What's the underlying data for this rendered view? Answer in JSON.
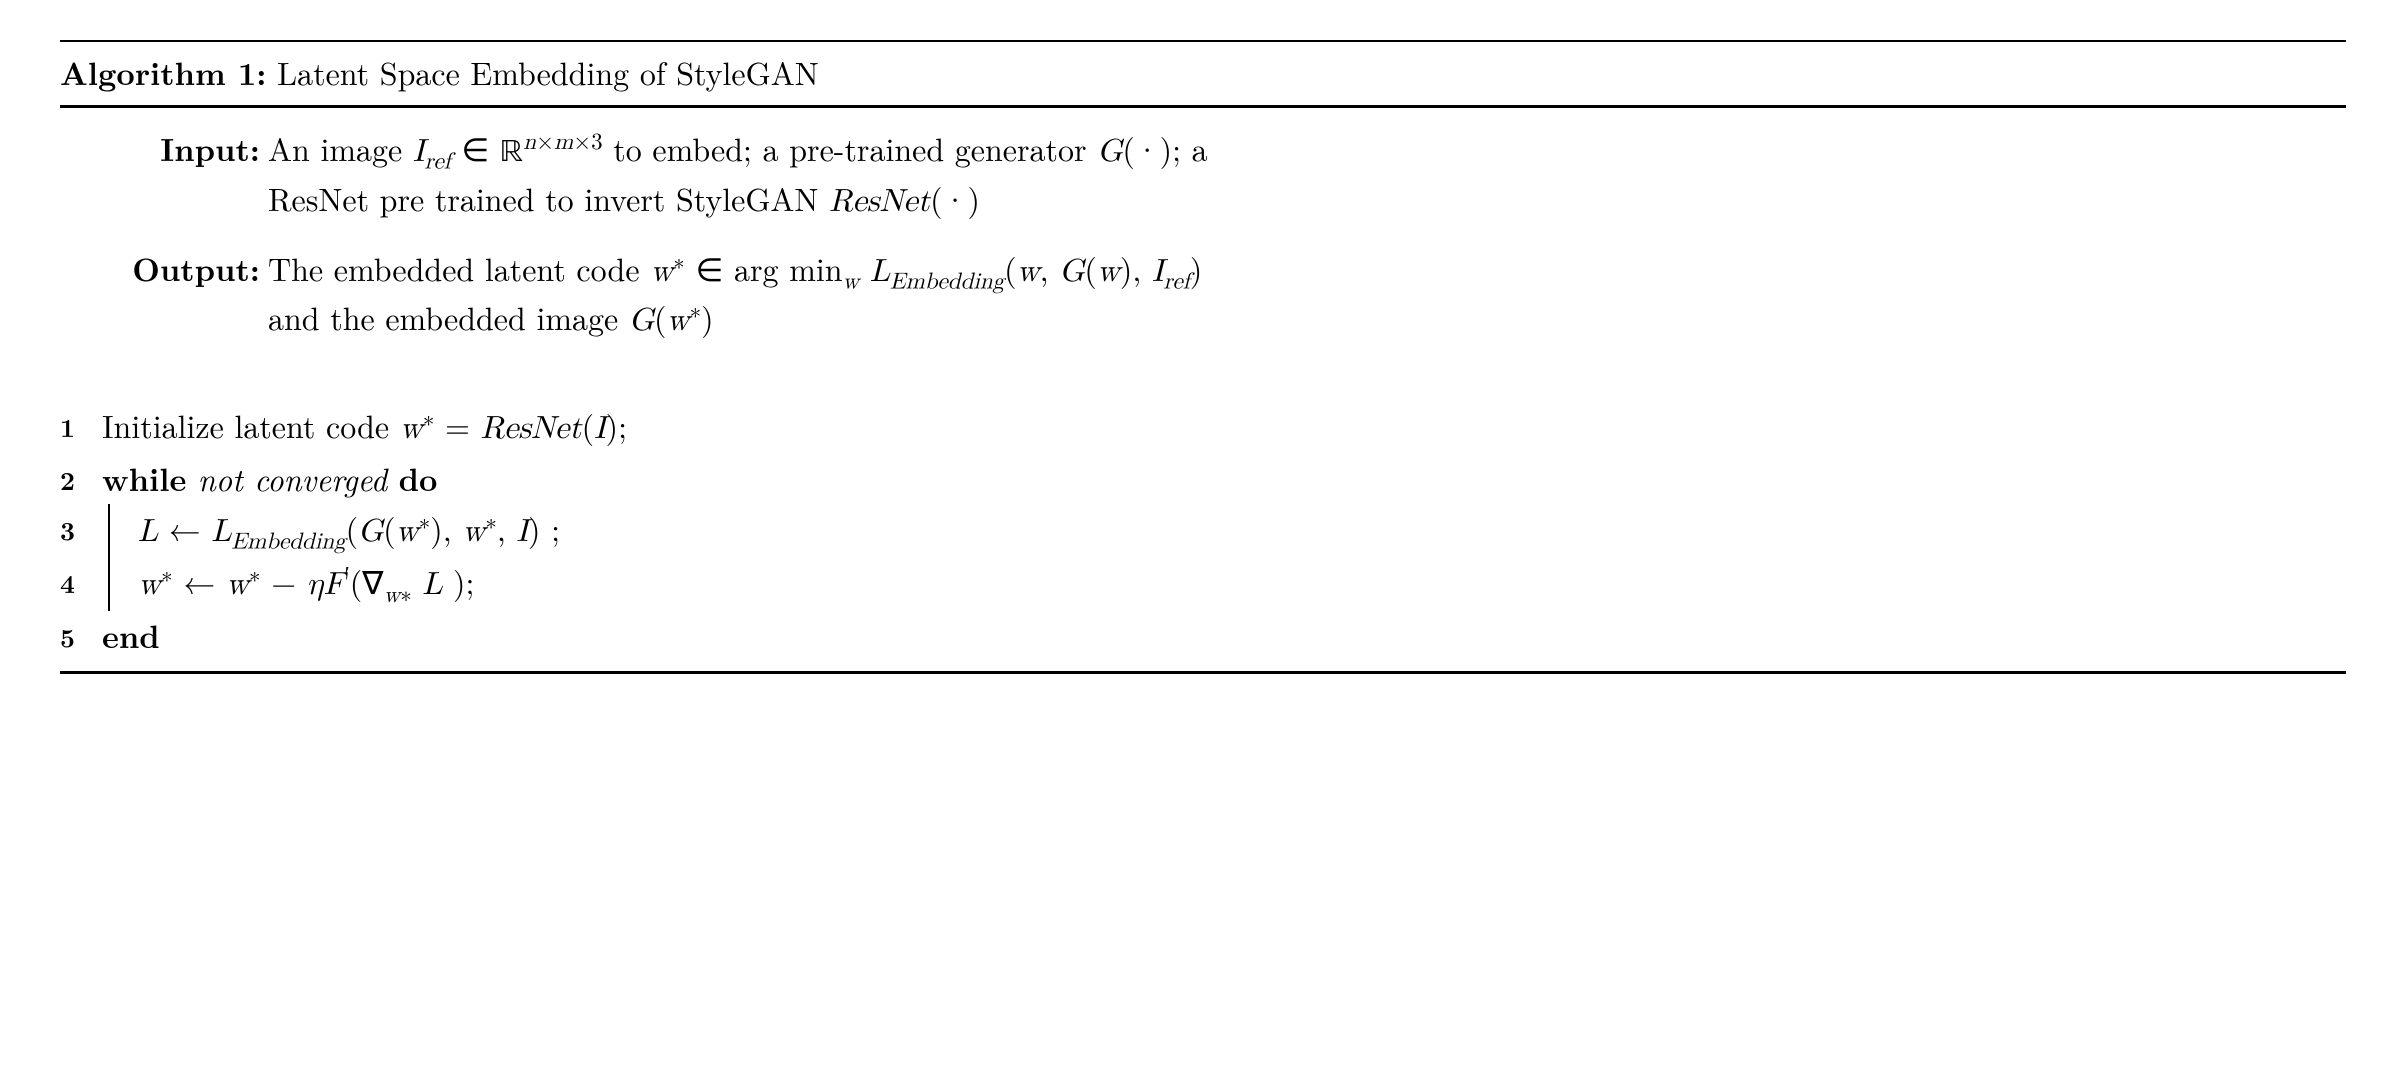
{
  "title": {
    "label": "Algorithm 1:",
    "text": "Latent Space Embedding of StyleGAN"
  },
  "input": {
    "label": "Input:",
    "line1_pre": "An image ",
    "line1_math_Iref": "I",
    "line1_sub_ref": "ref",
    "line1_in": " ∈ ",
    "line1_R": "ℝ",
    "line1_exp_n": "n",
    "line1_exp_times1": "×",
    "line1_exp_m": "m",
    "line1_exp_times2": "×",
    "line1_exp_3": "3",
    "line1_post": " to embed; a pre-trained generator ",
    "line1_G": "G",
    "line1_Gargs": "(·); a",
    "line2_pre": "ResNet pre trained to invert StyleGAN ",
    "line2_ResNet": "ResNet",
    "line2_args": "(·)"
  },
  "output": {
    "label": "Output:",
    "line1_pre": "The embedded latent code ",
    "line1_w": "w",
    "line1_star": "∗",
    "line1_in": " ∈ arg min",
    "line1_sub_w": "w",
    "line1_sp": " ",
    "line1_L": "L",
    "line1_Lsub": "Embedding",
    "line1_args_open": "(",
    "line1_warg": "w",
    "line1_comma1": ", ",
    "line1_G": "G",
    "line1_Gopen": "(",
    "line1_Gw": "w",
    "line1_Gclose": ")",
    "line1_comma2": ", ",
    "line1_I": "I",
    "line1_Iref": "ref",
    "line1_close": ")",
    "line2_pre": "and the embedded image ",
    "line2_G": "G",
    "line2_open": "(",
    "line2_w": "w",
    "line2_star": "∗",
    "line2_close": ")"
  },
  "steps": {
    "s1": {
      "num": "1",
      "pre": "Initialize latent code ",
      "w": "w",
      "star": "∗",
      "eq": " = ",
      "ResNet": "ResNet",
      "open": "(",
      "I": "I",
      "close": ");"
    },
    "s2": {
      "num": "2",
      "while": "while",
      "cond": " not converged ",
      "do": "do"
    },
    "s3": {
      "num": "3",
      "L": "L",
      "arrow": " ← ",
      "Le": "L",
      "Lesub": "Embedding",
      "open": "(",
      "G": "G",
      "Gopen": "(",
      "w1": "w",
      "star1": "∗",
      "Gclose": ")",
      "c1": ", ",
      "w2": "w",
      "star2": "∗",
      "c2": ", ",
      "I": "I",
      "close": ") ;"
    },
    "s4": {
      "num": "4",
      "w": "w",
      "star": "∗",
      "arrow": " ← ",
      "w2": "w",
      "star2": "∗",
      "minus": " − ",
      "eta": "η",
      "F": "F",
      "prime": "′",
      "open": "(",
      "nabla": "∇",
      "sub_w": "w",
      "sub_star": "∗",
      "sp": " ",
      "L": "L",
      "close": " );"
    },
    "s5": {
      "num": "5",
      "end": "end"
    }
  }
}
